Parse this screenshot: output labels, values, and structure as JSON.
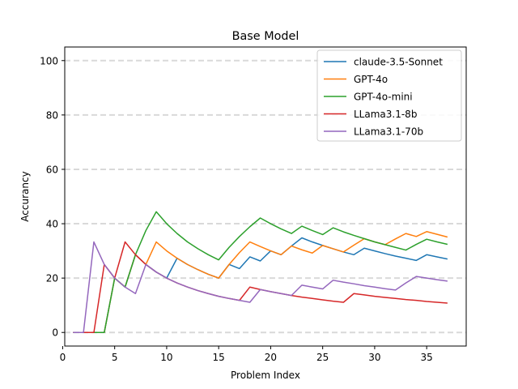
{
  "chart_data": {
    "type": "line",
    "title": "Base Model",
    "xlabel": "Problem Index",
    "ylabel": "Accurancy",
    "xlim": [
      0.2,
      38.8
    ],
    "ylim": [
      -5,
      105
    ],
    "xticks": [
      0,
      5,
      10,
      15,
      20,
      25,
      30,
      35
    ],
    "yticks": [
      0,
      20,
      40,
      60,
      80,
      100
    ],
    "grid": "horizontal dashed",
    "legend_position": "top-right",
    "x": [
      1,
      2,
      3,
      4,
      5,
      6,
      7,
      8,
      9,
      10,
      11,
      12,
      13,
      14,
      15,
      16,
      17,
      18,
      19,
      20,
      21,
      22,
      23,
      24,
      25,
      26,
      27,
      28,
      29,
      30,
      31,
      32,
      33,
      34,
      35,
      36,
      37
    ],
    "series": [
      {
        "name": "claude-3.5-Sonnet",
        "color": "#1f77b4",
        "values": [
          0,
          0,
          0,
          0,
          20.0,
          16.7,
          28.6,
          25.0,
          22.2,
          20.0,
          27.3,
          25.0,
          23.1,
          21.4,
          20.0,
          25.0,
          23.5,
          27.8,
          26.3,
          30.0,
          28.6,
          31.8,
          34.8,
          33.3,
          32.0,
          30.8,
          29.6,
          28.6,
          31.0,
          30.0,
          29.0,
          28.1,
          27.3,
          26.5,
          28.6,
          27.8,
          27.0
        ]
      },
      {
        "name": "GPT-4o",
        "color": "#ff7f0e",
        "values": [
          0,
          0,
          0,
          0,
          20.0,
          16.7,
          28.6,
          25.0,
          33.3,
          30.0,
          27.3,
          25.0,
          23.1,
          21.4,
          20.0,
          25.0,
          29.4,
          33.3,
          31.6,
          30.0,
          28.6,
          31.8,
          30.4,
          29.2,
          32.0,
          30.8,
          29.6,
          32.1,
          34.5,
          33.3,
          32.3,
          34.4,
          36.4,
          35.3,
          37.1,
          36.1,
          35.1
        ]
      },
      {
        "name": "GPT-4o-mini",
        "color": "#2ca02c",
        "values": [
          0,
          0,
          0,
          0,
          20.0,
          16.7,
          28.6,
          37.5,
          44.4,
          40.0,
          36.4,
          33.3,
          30.8,
          28.6,
          26.7,
          31.3,
          35.3,
          38.9,
          42.1,
          40.0,
          38.1,
          36.4,
          39.1,
          37.5,
          36.0,
          38.5,
          37.0,
          35.7,
          34.5,
          33.3,
          32.3,
          31.3,
          30.3,
          32.4,
          34.3,
          33.3,
          32.4
        ]
      },
      {
        "name": "LLama3.1-8b",
        "color": "#d62728",
        "values": [
          0,
          0,
          0,
          25.0,
          20.0,
          33.3,
          28.6,
          25.0,
          22.2,
          20.0,
          18.2,
          16.7,
          15.4,
          14.3,
          13.3,
          12.5,
          11.8,
          16.7,
          15.8,
          15.0,
          14.3,
          13.6,
          13.0,
          12.5,
          12.0,
          11.5,
          11.1,
          14.3,
          13.8,
          13.3,
          12.9,
          12.5,
          12.1,
          11.8,
          11.4,
          11.1,
          10.8
        ]
      },
      {
        "name": "LLama3.1-70b",
        "color": "#9467bd",
        "values": [
          0,
          0,
          33.3,
          25.0,
          20.0,
          16.7,
          14.3,
          25.0,
          22.2,
          20.0,
          18.2,
          16.7,
          15.4,
          14.3,
          13.3,
          12.5,
          11.8,
          11.1,
          15.8,
          15.0,
          14.3,
          13.6,
          17.4,
          16.7,
          16.0,
          19.2,
          18.5,
          17.9,
          17.2,
          16.7,
          16.1,
          15.6,
          18.2,
          20.6,
          20.0,
          19.4,
          18.9
        ]
      }
    ]
  }
}
